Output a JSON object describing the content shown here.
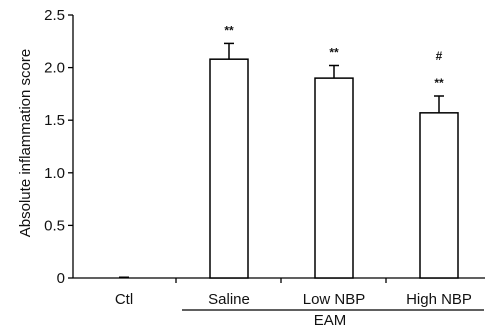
{
  "chart_data": {
    "type": "bar",
    "title": "",
    "xlabel": "",
    "ylabel": "Absolute inflammation score",
    "ylim": [
      0,
      2.5
    ],
    "yticks": [
      "0",
      "0.5",
      "1.0",
      "1.5",
      "2.0",
      "2.5"
    ],
    "categories": [
      "Ctl",
      "Saline",
      "Low NBP",
      "High NBP"
    ],
    "values": [
      0.0,
      2.08,
      1.9,
      1.57
    ],
    "errors": [
      0.0,
      0.15,
      0.12,
      0.16
    ],
    "group_label": "EAM",
    "group_members": [
      "Saline",
      "Low NBP",
      "High NBP"
    ],
    "annotations": [
      {
        "category": "Saline",
        "marks": [
          "**"
        ]
      },
      {
        "category": "Low NBP",
        "marks": [
          "**"
        ]
      },
      {
        "category": "High NBP",
        "marks": [
          "#",
          "**"
        ]
      }
    ],
    "bar_fill": "#ffffff",
    "bar_stroke": "#000000",
    "grid": false
  }
}
